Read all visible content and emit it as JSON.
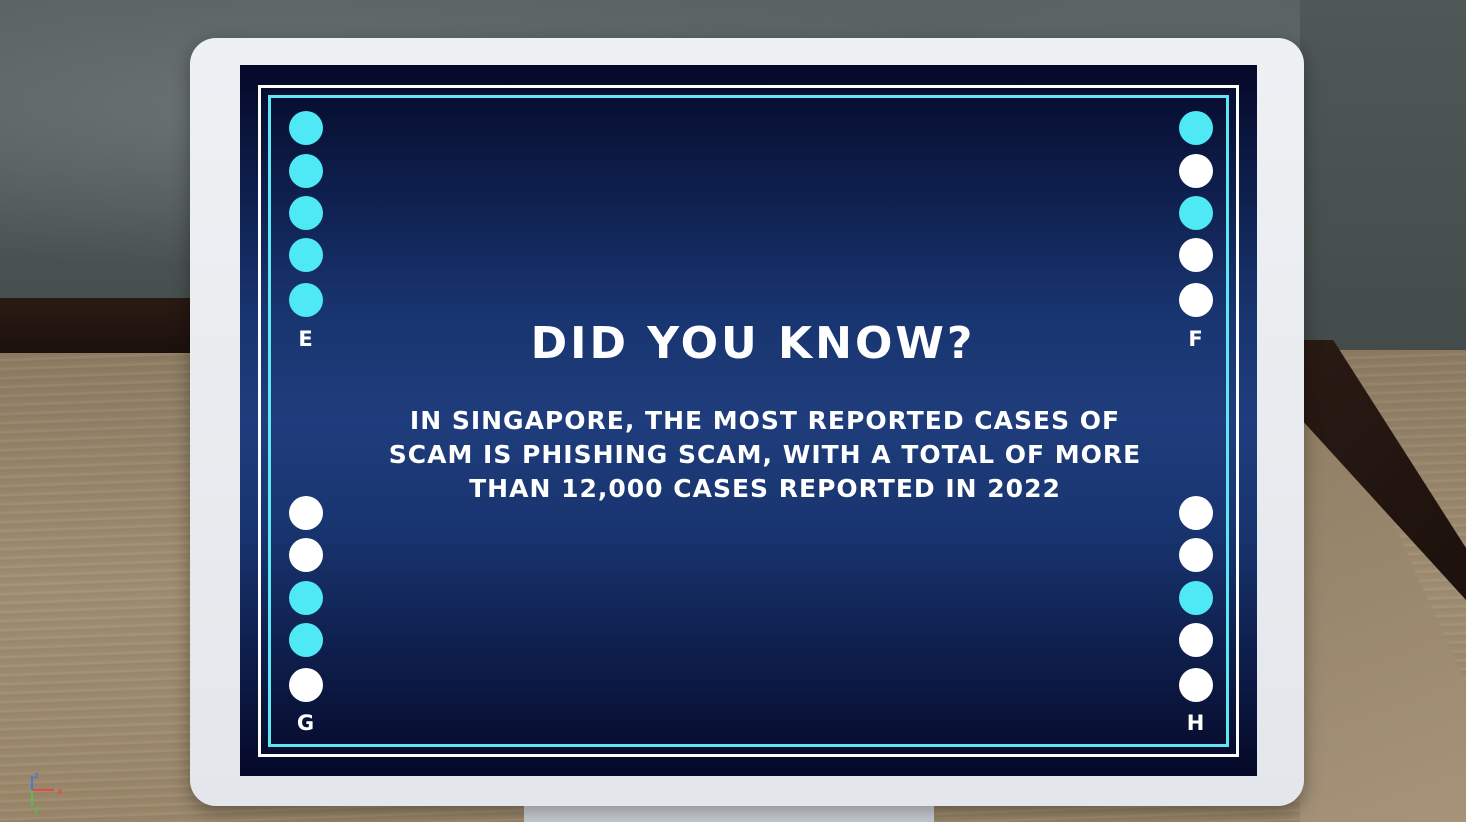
{
  "screen": {
    "title": "DID YOU KNOW?",
    "body": "IN SINGAPORE, THE MOST REPORTED CASES OF SCAM IS PHISHING SCAM, WITH A TOTAL OF MORE THAN 12,000 CASES REPORTED IN 2022"
  },
  "corners": {
    "top_left": {
      "label": "E",
      "dots": [
        "cyan",
        "cyan",
        "cyan",
        "cyan",
        "cyan"
      ]
    },
    "top_right": {
      "label": "F",
      "dots": [
        "cyan",
        "white",
        "cyan",
        "white",
        "white"
      ]
    },
    "bottom_left": {
      "label": "G",
      "dots": [
        "white",
        "white",
        "cyan",
        "cyan",
        "white"
      ]
    },
    "bottom_right": {
      "label": "H",
      "dots": [
        "white",
        "white",
        "cyan",
        "white",
        "white"
      ]
    }
  },
  "gizmo": {
    "z": "z",
    "x": "x",
    "y": "y"
  },
  "colors": {
    "cyan": "#4ee9f4",
    "white": "#ffffff",
    "screen_dark": "#050828",
    "screen_mid": "#1f3d7c"
  }
}
